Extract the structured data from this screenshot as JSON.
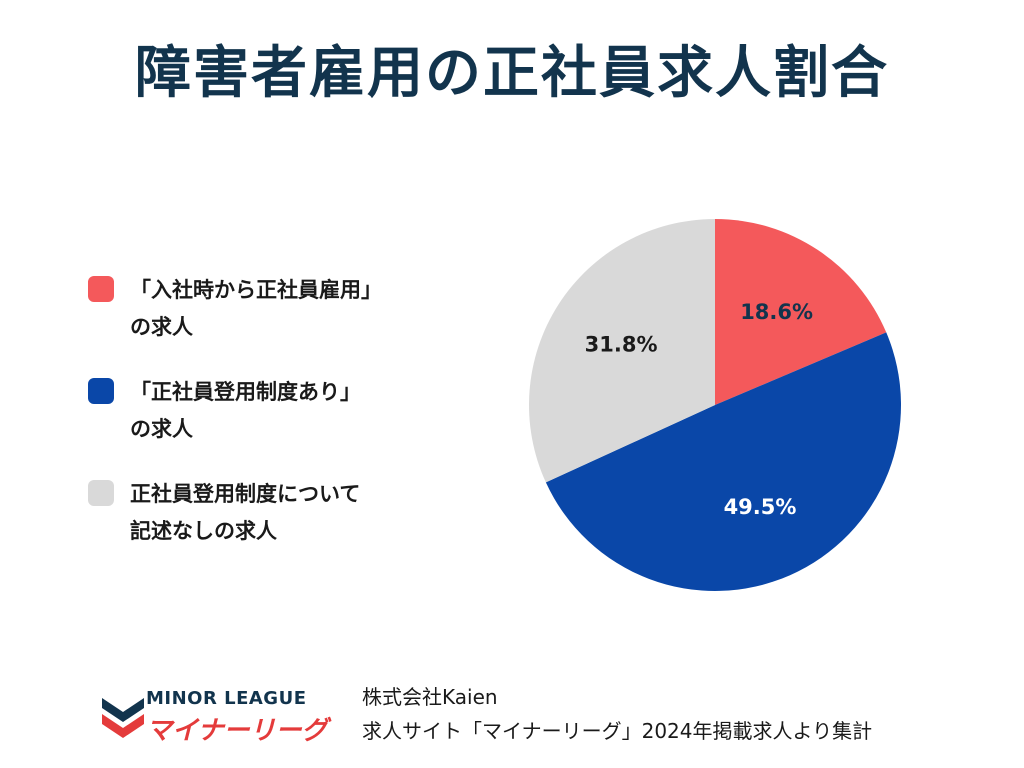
{
  "title": "障害者雇用の正社員求人割合",
  "legend": [
    {
      "line1": "「入社時から正社員雇用」",
      "line2": "の求人",
      "color": "#f4595b"
    },
    {
      "line1": "「正社員登用制度あり」",
      "line2": "の求人",
      "color": "#0a47a8"
    },
    {
      "line1": "正社員登用制度について",
      "line2": "記述なしの求人",
      "color": "#d9d9d9"
    }
  ],
  "chart_data": {
    "type": "pie",
    "title": "障害者雇用の正社員求人割合",
    "categories": [
      "「入社時から正社員雇用」の求人",
      "「正社員登用制度あり」の求人",
      "正社員登用制度について記述なしの求人"
    ],
    "values": [
      18.6,
      49.5,
      31.8
    ],
    "labels": [
      "18.6%",
      "49.5%",
      "31.8%"
    ],
    "colors": [
      "#f4595b",
      "#0a47a8",
      "#d9d9d9"
    ],
    "label_colors": [
      "#12344d",
      "#ffffff",
      "#1a1a1a"
    ],
    "legend_position": "left"
  },
  "logo": {
    "top": "MINOR LEAGUE",
    "bottom": "マイナーリーグ"
  },
  "source": {
    "line1": "株式会社Kaien",
    "line2": "求人サイト「マイナーリーグ」2024年掲載求人より集計"
  }
}
